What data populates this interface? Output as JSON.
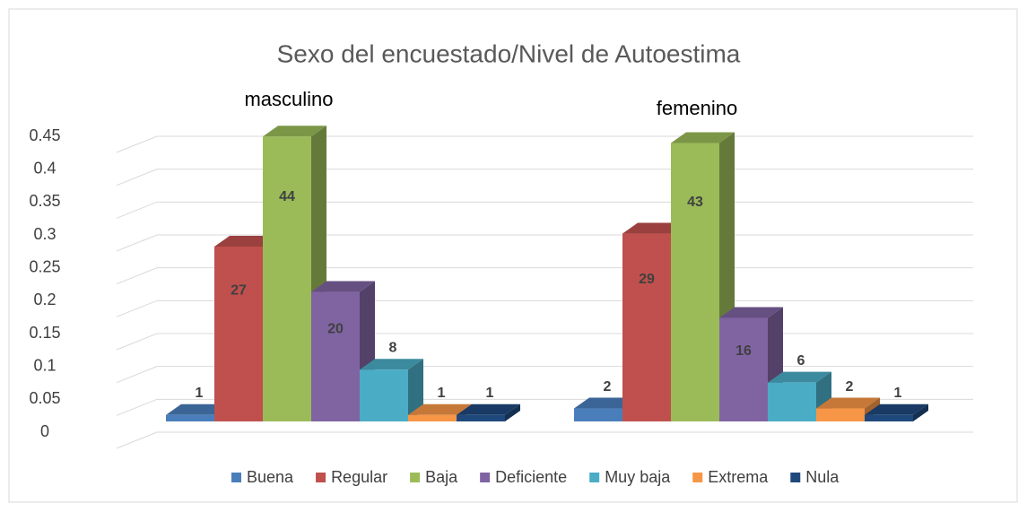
{
  "chart_data": {
    "type": "bar3d",
    "title": "Sexo del encuestado/Nivel de Autoestima",
    "categories": [
      "masculino",
      "femenino"
    ],
    "series": [
      {
        "name": "Buena",
        "color": "#4a7ebb",
        "values": [
          0.01,
          0.02
        ],
        "value_labels": [
          "1",
          "2"
        ]
      },
      {
        "name": "Regular",
        "color": "#c0504d",
        "values": [
          0.27,
          0.29
        ],
        "value_labels": [
          "27",
          "29"
        ]
      },
      {
        "name": "Baja",
        "color": "#9bbb59",
        "values": [
          0.44,
          0.43
        ],
        "value_labels": [
          "44",
          "43"
        ]
      },
      {
        "name": "Deficiente",
        "color": "#8064a2",
        "values": [
          0.2,
          0.16
        ],
        "value_labels": [
          "20",
          "16"
        ]
      },
      {
        "name": "Muy baja",
        "color": "#4bacc6",
        "values": [
          0.08,
          0.06
        ],
        "value_labels": [
          "8",
          "6"
        ]
      },
      {
        "name": "Extrema",
        "color": "#f79646",
        "values": [
          0.01,
          0.02
        ],
        "value_labels": [
          "1",
          "2"
        ]
      },
      {
        "name": "Nula",
        "color": "#1f497d",
        "values": [
          0.01,
          0.01
        ],
        "value_labels": [
          "1",
          "1"
        ]
      }
    ],
    "ylim": [
      0,
      0.45
    ],
    "yticks": [
      0,
      0.05,
      0.1,
      0.15,
      0.2,
      0.25,
      0.3,
      0.35,
      0.4,
      0.45
    ],
    "grid": true,
    "legend": "bottom"
  }
}
